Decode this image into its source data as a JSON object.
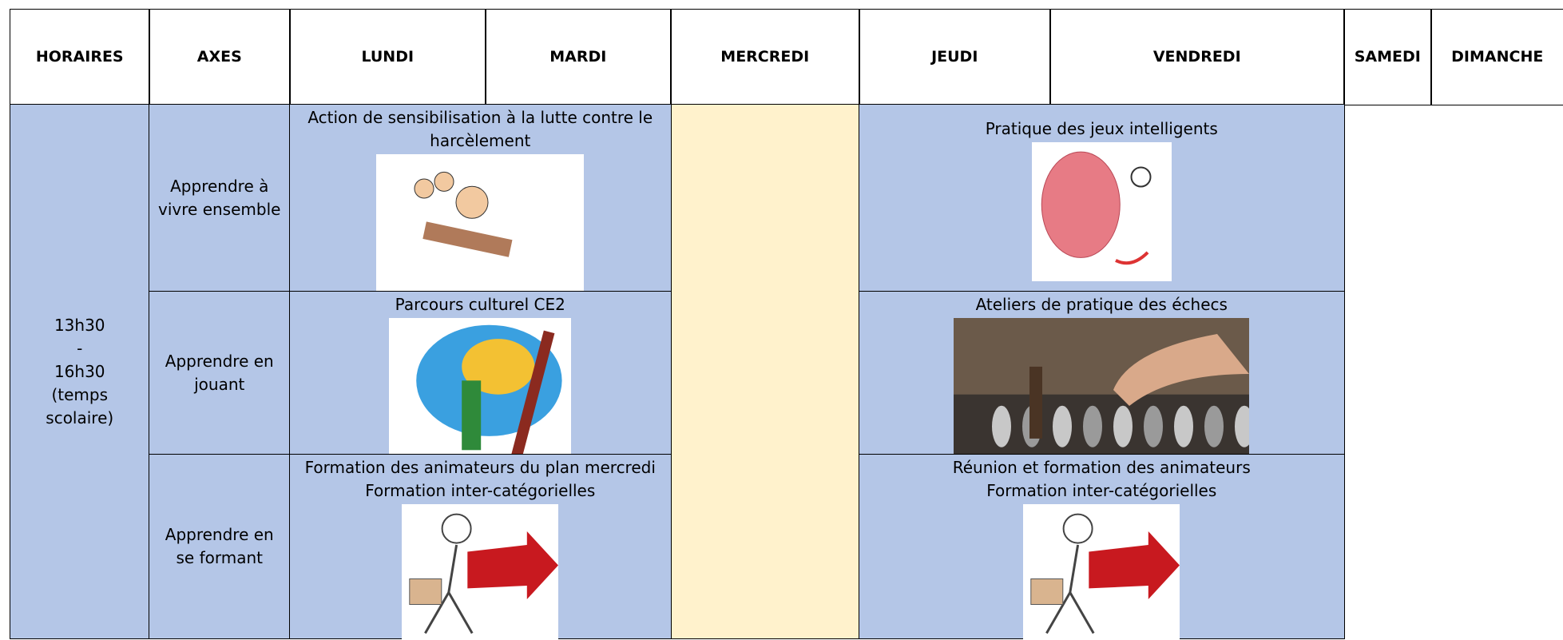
{
  "table": {
    "header": [
      "HORAIRES",
      "AXES",
      "LUNDI",
      "MARDI",
      "MERCREDI",
      "JEUDI",
      "VENDREDI",
      "SAMEDI",
      "DIMANCHE"
    ],
    "time": [
      "13h30",
      "-",
      "16h30",
      "(temps",
      "scolaire)"
    ],
    "rows": [
      {
        "axis": "Apprendre à vivre ensemble",
        "monday_tuesday": [
          "Action de sensibilisation à la lutte contre le harcèlement"
        ],
        "thursday_friday": [
          "Pratique des jeux intelligents"
        ]
      },
      {
        "axis": "Apprendre en jouant",
        "monday_tuesday": [
          "Parcours culturel CE2"
        ],
        "thursday_friday": [
          "Ateliers de pratique des échecs"
        ]
      },
      {
        "axis": "Apprendre en se formant",
        "monday_tuesday": [
          "Formation des animateurs du plan mercredi",
          "Formation inter-catégorielles"
        ],
        "thursday_friday": [
          "Réunion et formation des animateurs",
          "Formation inter-catégorielles"
        ]
      }
    ]
  }
}
